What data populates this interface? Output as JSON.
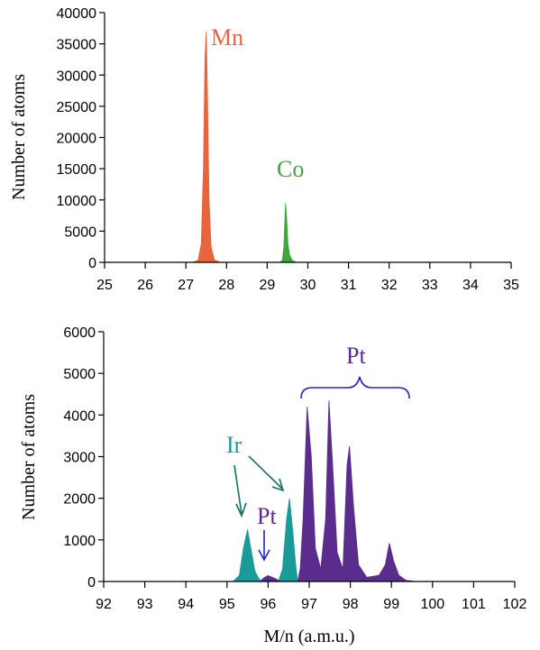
{
  "chart_data": [
    {
      "type": "area",
      "title": "",
      "xlabel": "",
      "ylabel": "Number of atoms",
      "xlim": [
        25,
        35
      ],
      "ylim": [
        0,
        40000
      ],
      "xticks": [
        "25",
        "26",
        "27",
        "28",
        "29",
        "30",
        "31",
        "32",
        "33",
        "34",
        "35"
      ],
      "yticks": [
        "0",
        "5000",
        "10000",
        "15000",
        "20000",
        "25000",
        "30000",
        "35000",
        "40000"
      ],
      "grid": false,
      "series": [
        {
          "name": "Mn",
          "color": "#e8643c",
          "x": [
            27.15,
            27.3,
            27.38,
            27.43,
            27.47,
            27.5,
            27.53,
            27.57,
            27.62,
            27.7,
            27.85
          ],
          "y": [
            0,
            300,
            3000,
            15000,
            33000,
            37000,
            27000,
            10000,
            2500,
            400,
            0
          ]
        },
        {
          "name": "Co",
          "color": "#3fa63a",
          "x": [
            29.3,
            29.37,
            29.41,
            29.45,
            29.48,
            29.51,
            29.55,
            29.62,
            29.72
          ],
          "y": [
            0,
            300,
            2500,
            9500,
            7000,
            3000,
            1200,
            300,
            0
          ]
        }
      ],
      "annotations": [
        {
          "text": "Mn",
          "color": "#e8643c"
        },
        {
          "text": "Co",
          "color": "#3fa63a"
        }
      ]
    },
    {
      "type": "area",
      "title": "",
      "xlabel": "M/n (a.m.u.)",
      "ylabel": "Number of atoms",
      "xlim": [
        92,
        102
      ],
      "ylim": [
        0,
        6000
      ],
      "xticks": [
        "92",
        "93",
        "94",
        "95",
        "96",
        "97",
        "98",
        "99",
        "100",
        "101",
        "102"
      ],
      "yticks": [
        "0",
        "1000",
        "2000",
        "3000",
        "4000",
        "5000",
        "6000"
      ],
      "grid": false,
      "series": [
        {
          "name": "Ir",
          "color": "#1a9a98",
          "x": [
            95.15,
            95.3,
            95.4,
            95.5,
            95.58,
            95.68,
            95.78,
            95.85,
            96.25,
            96.35,
            96.45,
            96.52,
            96.6,
            96.67,
            96.72
          ],
          "y": [
            0,
            150,
            800,
            1250,
            800,
            250,
            60,
            0,
            0,
            300,
            1500,
            2000,
            1200,
            400,
            0
          ]
        },
        {
          "name": "Pt",
          "color": "#5a2d8c",
          "x": [
            95.8,
            95.9,
            96.0,
            96.1,
            96.2,
            96.28,
            96.72,
            96.78,
            96.85,
            96.95,
            97.05,
            97.15,
            97.28,
            97.4,
            97.48,
            97.57,
            97.68,
            97.82,
            97.92,
            97.98,
            98.08,
            98.2,
            98.4,
            98.7,
            98.85,
            98.95,
            99.05,
            99.18,
            99.35,
            99.6
          ],
          "y": [
            0,
            90,
            140,
            100,
            60,
            0,
            0,
            300,
            1500,
            4200,
            3000,
            800,
            300,
            1500,
            4350,
            2800,
            700,
            300,
            2800,
            3250,
            1800,
            400,
            100,
            150,
            400,
            920,
            500,
            150,
            30,
            0
          ]
        }
      ],
      "annotations": [
        {
          "text": "Pt",
          "color": "#5a2d8c"
        },
        {
          "text": "Ir",
          "color": "#1a9a98"
        },
        {
          "text": "Pt",
          "color": "#5a2d8c"
        }
      ],
      "bracket_color": "#2222cc"
    }
  ]
}
